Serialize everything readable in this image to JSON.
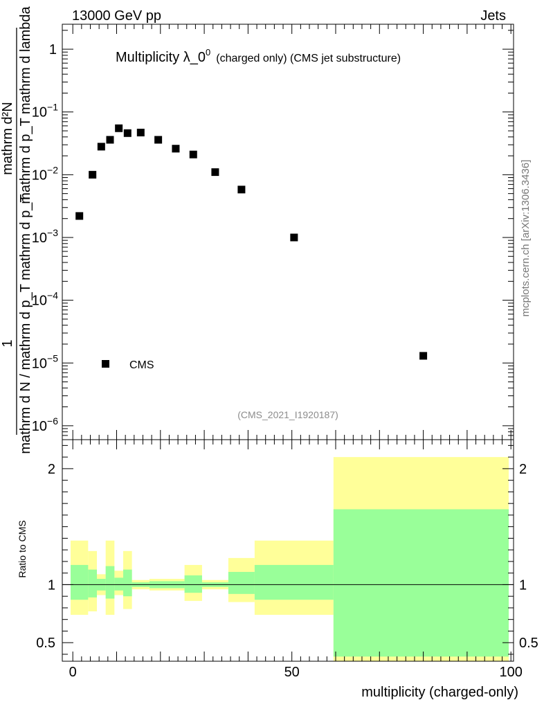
{
  "header": {
    "energy_label": "13000 GeV pp",
    "process_label": "Jets",
    "side_label": "mcplots.cern.ch [arXiv:1306.3436]"
  },
  "chart_data": [
    {
      "panel": "main",
      "type": "scatter",
      "title": "Multiplicity λ_0",
      "title_superscript": "0",
      "subtitle": "(charged only) (CMS jet substructure)",
      "analysis_id": "(CMS_2021_I1920187)",
      "ylabel_lines": [
        "1",
        "mathrm d N / mathrm d p_T mathrm d p_T",
        "mathrm d²N",
        "mathrm d p_T mathrm d lambda"
      ],
      "yscale": "log",
      "ylim": [
        6e-07,
        2.5
      ],
      "xlim": [
        -2.4,
        100.6
      ],
      "y_ticks": [
        {
          "value": 1,
          "label": "1",
          "exp": ""
        },
        {
          "value": 0.1,
          "label": "10",
          "exp": "−1"
        },
        {
          "value": 0.01,
          "label": "10",
          "exp": "−2"
        },
        {
          "value": 0.001,
          "label": "10",
          "exp": "−3"
        },
        {
          "value": 0.0001,
          "label": "10",
          "exp": "−4"
        },
        {
          "value": 1e-05,
          "label": "10",
          "exp": "−5"
        },
        {
          "value": 1e-06,
          "label": "10",
          "exp": "−6"
        }
      ],
      "legend": [
        {
          "name": "CMS",
          "marker": "square",
          "color": "#000000",
          "position": "lower-left"
        }
      ],
      "series": [
        {
          "name": "CMS",
          "x": [
            1.5,
            4.5,
            6.5,
            8.5,
            10.5,
            12.5,
            15.5,
            19.5,
            23.5,
            27.5,
            32.5,
            38.5,
            50.5,
            80.0
          ],
          "y": [
            0.0022,
            0.01,
            0.028,
            0.036,
            0.055,
            0.046,
            0.047,
            0.036,
            0.026,
            0.021,
            0.011,
            0.0058,
            0.001,
            1.3e-05
          ]
        }
      ]
    },
    {
      "panel": "ratio",
      "type": "area",
      "ylabel": "Ratio to CMS",
      "xlabel": "multiplicity (charged-only)",
      "ylim": [
        0.34,
        2.25
      ],
      "xlim": [
        -2.4,
        100.6
      ],
      "x_ticks": [
        0,
        50,
        100
      ],
      "y_ticks": [
        0.5,
        1,
        2
      ],
      "reference_line": 1,
      "bands": [
        {
          "name": "total uncertainty",
          "color": "#ffff99",
          "bins": [
            {
              "x0": -0.5,
              "x1": 3.5,
              "lo": 0.74,
              "hi": 1.38
            },
            {
              "x0": 3.5,
              "x1": 5.5,
              "lo": 0.77,
              "hi": 1.29
            },
            {
              "x0": 5.5,
              "x1": 7.5,
              "lo": 0.91,
              "hi": 1.09
            },
            {
              "x0": 7.5,
              "x1": 9.5,
              "lo": 0.74,
              "hi": 1.38
            },
            {
              "x0": 9.5,
              "x1": 11.5,
              "lo": 0.91,
              "hi": 1.12
            },
            {
              "x0": 11.5,
              "x1": 13.5,
              "lo": 0.79,
              "hi": 1.29
            },
            {
              "x0": 13.5,
              "x1": 17.5,
              "lo": 0.96,
              "hi": 1.04
            },
            {
              "x0": 17.5,
              "x1": 25.5,
              "lo": 0.95,
              "hi": 1.05
            },
            {
              "x0": 25.5,
              "x1": 29.5,
              "lo": 0.86,
              "hi": 1.17
            },
            {
              "x0": 29.5,
              "x1": 35.5,
              "lo": 0.96,
              "hi": 1.04
            },
            {
              "x0": 35.5,
              "x1": 41.5,
              "lo": 0.85,
              "hi": 1.23
            },
            {
              "x0": 41.5,
              "x1": 59.5,
              "lo": 0.74,
              "hi": 1.38
            },
            {
              "x0": 59.5,
              "x1": 99.5,
              "lo": 0.31,
              "hi": 2.1
            }
          ]
        },
        {
          "name": "stat uncertainty",
          "color": "#99ff99",
          "bins": [
            {
              "x0": -0.5,
              "x1": 3.5,
              "lo": 0.87,
              "hi": 1.17
            },
            {
              "x0": 3.5,
              "x1": 5.5,
              "lo": 0.89,
              "hi": 1.13
            },
            {
              "x0": 5.5,
              "x1": 7.5,
              "lo": 0.95,
              "hi": 1.05
            },
            {
              "x0": 7.5,
              "x1": 9.5,
              "lo": 0.88,
              "hi": 1.16
            },
            {
              "x0": 9.5,
              "x1": 11.5,
              "lo": 0.95,
              "hi": 1.06
            },
            {
              "x0": 11.5,
              "x1": 13.5,
              "lo": 0.9,
              "hi": 1.13
            },
            {
              "x0": 13.5,
              "x1": 17.5,
              "lo": 0.98,
              "hi": 1.02
            },
            {
              "x0": 17.5,
              "x1": 25.5,
              "lo": 0.97,
              "hi": 1.03
            },
            {
              "x0": 25.5,
              "x1": 29.5,
              "lo": 0.93,
              "hi": 1.08
            },
            {
              "x0": 29.5,
              "x1": 35.5,
              "lo": 0.98,
              "hi": 1.02
            },
            {
              "x0": 35.5,
              "x1": 41.5,
              "lo": 0.92,
              "hi": 1.11
            },
            {
              "x0": 41.5,
              "x1": 59.5,
              "lo": 0.87,
              "hi": 1.17
            },
            {
              "x0": 59.5,
              "x1": 99.5,
              "lo": 0.38,
              "hi": 1.65
            }
          ]
        }
      ]
    }
  ]
}
